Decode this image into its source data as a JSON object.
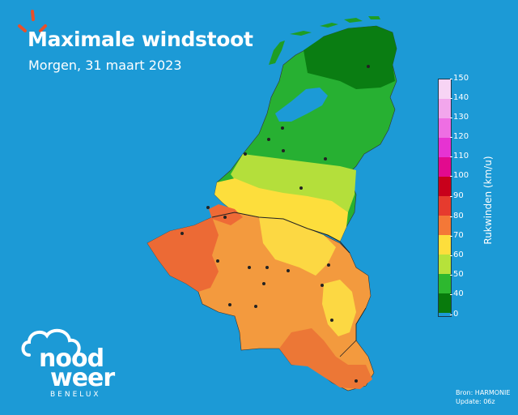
{
  "header": {
    "title": "Maximale windstoot",
    "subtitle": "Morgen, 31 maart 2023"
  },
  "legend": {
    "label": "Rukwinden (km/u)",
    "ticks": [
      "150",
      "140",
      "130",
      "120",
      "110",
      "100",
      "90",
      "80",
      "70",
      "60",
      "50",
      "40",
      "0"
    ],
    "colors": [
      "#f7d4f4",
      "#f2a6ec",
      "#ee6ee3",
      "#e633d2",
      "#e20a8e",
      "#c8001b",
      "#e63b2e",
      "#f47837",
      "#fdde3c",
      "#b6e23a",
      "#2db82f",
      "#0f9a12",
      "#087a0c"
    ]
  },
  "logo": {
    "line1": "nood",
    "line2": "weer",
    "line3": "BENELUX"
  },
  "footer": {
    "source": "Bron: HARMONIE",
    "update": "Update: 06z"
  }
}
